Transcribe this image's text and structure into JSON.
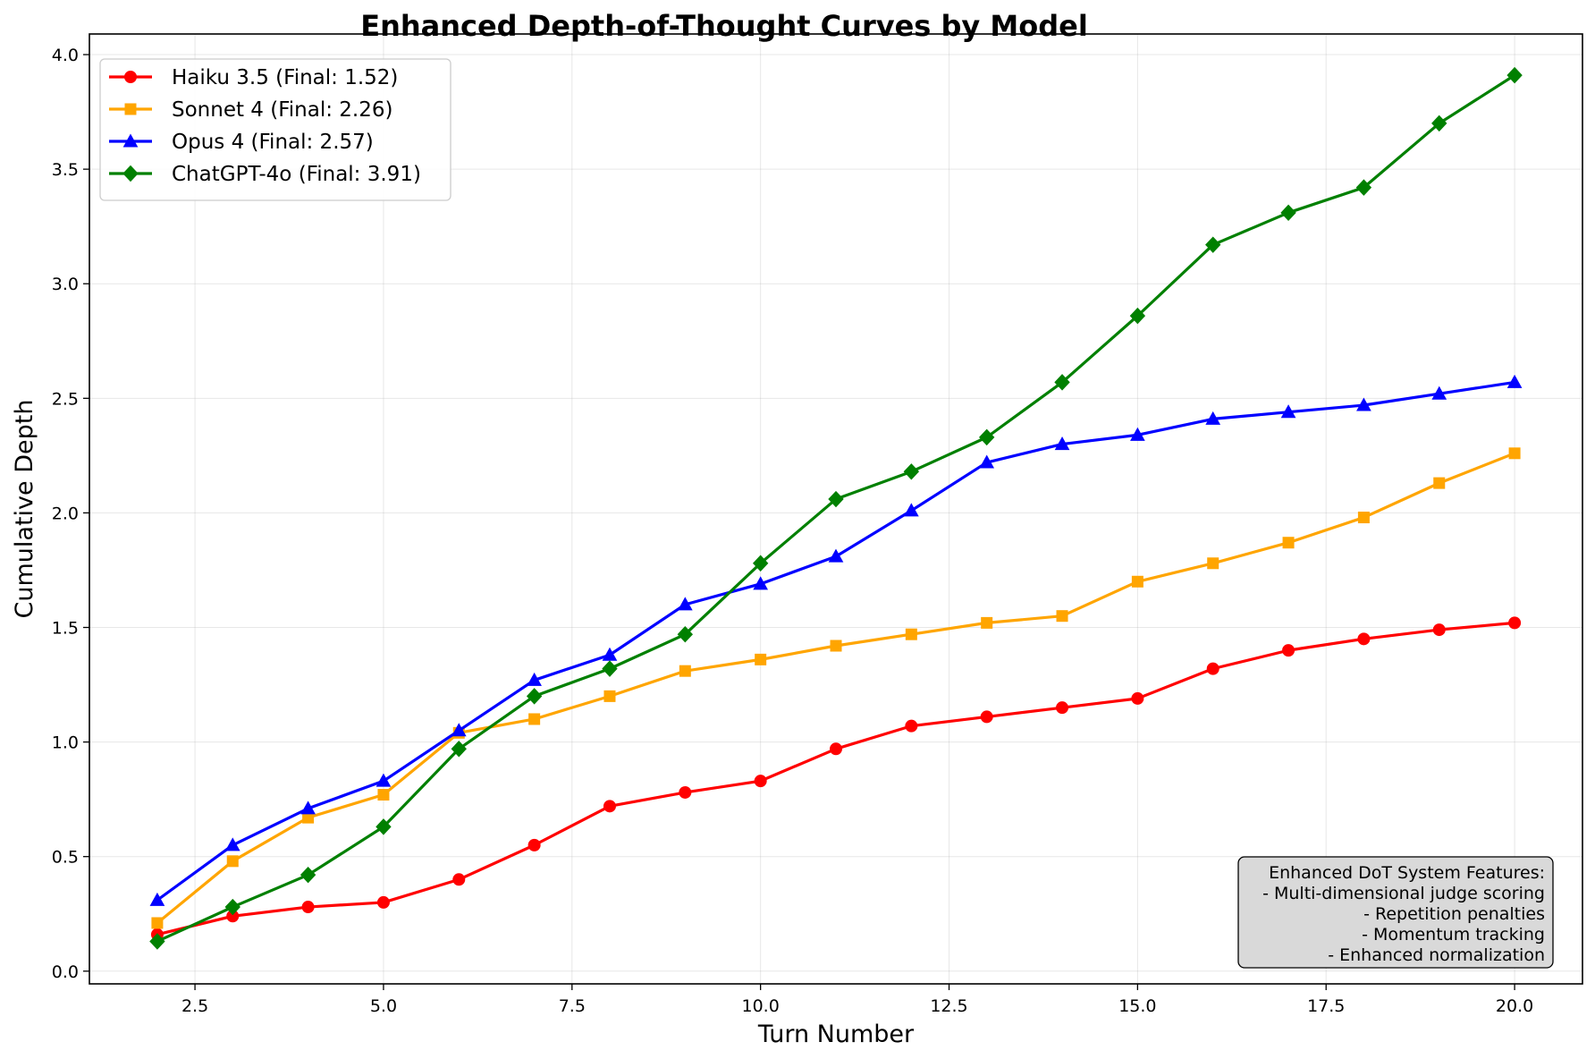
{
  "chart_data": {
    "type": "line",
    "title": "Enhanced Depth-of-Thought Curves by Model",
    "xlabel": "Turn Number",
    "ylabel": "Cumulative Depth",
    "xlim": [
      1.1,
      20.9
    ],
    "ylim": [
      -0.0555,
      4.09
    ],
    "xticks": [
      2.5,
      5.0,
      7.5,
      10.0,
      12.5,
      15.0,
      17.5,
      20.0
    ],
    "xtick_labels": [
      "2.5",
      "5.0",
      "7.5",
      "10.0",
      "12.5",
      "15.0",
      "17.5",
      "20.0"
    ],
    "yticks": [
      0.0,
      0.5,
      1.0,
      1.5,
      2.0,
      2.5,
      3.0,
      3.5,
      4.0
    ],
    "ytick_labels": [
      "0.0",
      "0.5",
      "1.0",
      "1.5",
      "2.0",
      "2.5",
      "3.0",
      "3.5",
      "4.0"
    ],
    "grid": true,
    "legend_position": "top-left",
    "x": [
      2,
      3,
      4,
      5,
      6,
      7,
      8,
      9,
      10,
      11,
      12,
      13,
      14,
      15,
      16,
      17,
      18,
      19,
      20
    ],
    "series": [
      {
        "name": "Haiku 3.5 (Final: 1.52)",
        "color": "#ff0000",
        "marker": "circle",
        "values": [
          0.16,
          0.24,
          0.28,
          0.3,
          0.4,
          0.55,
          0.72,
          0.78,
          0.83,
          0.97,
          1.07,
          1.11,
          1.15,
          1.19,
          1.32,
          1.4,
          1.45,
          1.49,
          1.52
        ]
      },
      {
        "name": "Sonnet 4 (Final: 2.26)",
        "color": "#ffa500",
        "marker": "square",
        "values": [
          0.21,
          0.48,
          0.67,
          0.77,
          1.04,
          1.1,
          1.2,
          1.31,
          1.36,
          1.42,
          1.47,
          1.52,
          1.55,
          1.7,
          1.78,
          1.87,
          1.98,
          2.13,
          2.26
        ]
      },
      {
        "name": "Opus 4 (Final: 2.57)",
        "color": "#0000ff",
        "marker": "triangle",
        "values": [
          0.31,
          0.55,
          0.71,
          0.83,
          1.05,
          1.27,
          1.38,
          1.6,
          1.69,
          1.81,
          2.01,
          2.22,
          2.3,
          2.34,
          2.41,
          2.44,
          2.47,
          2.52,
          2.57
        ]
      },
      {
        "name": "ChatGPT-4o (Final: 3.91)",
        "color": "#008000",
        "marker": "diamond",
        "values": [
          0.13,
          0.28,
          0.42,
          0.63,
          0.97,
          1.2,
          1.32,
          1.47,
          1.78,
          2.06,
          2.18,
          2.33,
          2.57,
          2.86,
          3.17,
          3.31,
          3.42,
          3.7,
          3.91
        ]
      }
    ],
    "annotation": {
      "lines": [
        "Enhanced DoT System Features:",
        "- Multi-dimensional judge scoring",
        "- Repetition penalties",
        "- Momentum tracking",
        "- Enhanced normalization"
      ],
      "position": "bottom-right",
      "background": "#d9d9d9"
    }
  }
}
